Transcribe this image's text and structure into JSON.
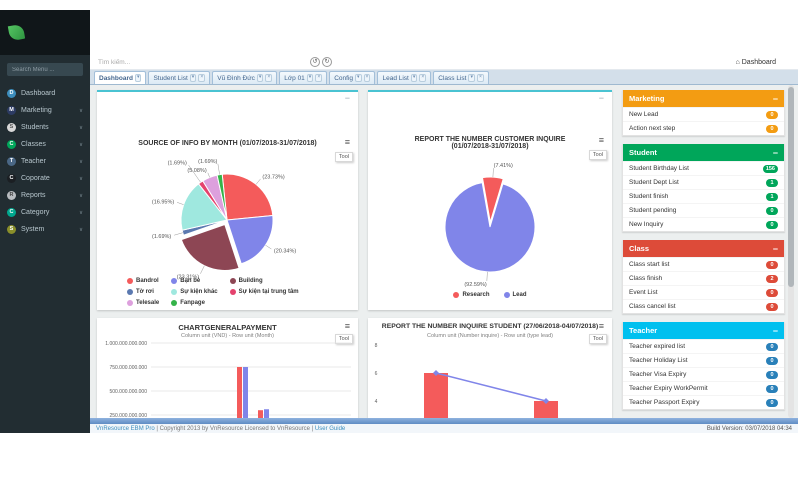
{
  "icons": {
    "minimize": "−",
    "close": "×",
    "caret": "▾",
    "home": "⌂",
    "back": "↺",
    "forward": "↻",
    "hamburger": "≡"
  },
  "labels": {
    "tool": "Tool"
  },
  "sidebar": {
    "search_placeholder": "Search Menu ...",
    "items": [
      {
        "label": "Dashboard",
        "icon": "dashboard-icon",
        "color": "#3c8dbc",
        "text": "#ffffff",
        "chevron": false
      },
      {
        "label": "Marketing",
        "icon": "marketing-icon",
        "color": "#2c3b63",
        "text": "#ffffff",
        "chevron": true
      },
      {
        "label": "Students",
        "icon": "students-icon",
        "color": "#d8d8d8",
        "text": "#555555",
        "chevron": true
      },
      {
        "label": "Classes",
        "icon": "classes-icon",
        "color": "#00a65a",
        "text": "#ffffff",
        "chevron": true
      },
      {
        "label": "Teacher",
        "icon": "teacher-icon",
        "color": "#4a6785",
        "text": "#ffffff",
        "chevron": true
      },
      {
        "label": "Coporate",
        "icon": "corporate-icon",
        "color": "#1b1f23",
        "text": "#ffffff",
        "chevron": true
      },
      {
        "label": "Reports",
        "icon": "reports-icon",
        "color": "#b8bcc0",
        "text": "#444444",
        "chevron": true
      },
      {
        "label": "Category",
        "icon": "category-icon",
        "color": "#00a78e",
        "text": "#ffffff",
        "chevron": true
      },
      {
        "label": "System",
        "icon": "system-icon",
        "color": "#8a8f2a",
        "text": "#ffffff",
        "chevron": true
      }
    ]
  },
  "navbar": {
    "search_placeholder": "Tìm kiếm...",
    "breadcrumb": "Dashboard"
  },
  "tabs": [
    {
      "label": "Dashboard",
      "active": true,
      "closable": false
    },
    {
      "label": "Student List",
      "active": false,
      "closable": true
    },
    {
      "label": "Vũ Đình Đức",
      "active": false,
      "closable": true
    },
    {
      "label": "Lớp 01",
      "active": false,
      "closable": true
    },
    {
      "label": "Config",
      "active": false,
      "closable": true
    },
    {
      "label": "Lead List",
      "active": false,
      "closable": true
    },
    {
      "label": "Class List",
      "active": false,
      "closable": true
    }
  ],
  "chart_data": [
    {
      "type": "pie",
      "title": "SOURCE OF INFO BY MONTH (01/07/2018-31/07/2018)",
      "start_angle": -6,
      "legend_position": "bottom",
      "slices": [
        {
          "label": "Bandrol",
          "value": 23.73,
          "color": "#f45b5b"
        },
        {
          "label": "Bạn bè",
          "value": 20.34,
          "color": "#8085e9"
        },
        {
          "label": "Building",
          "value": 23.31,
          "color": "#8d4654",
          "exploded": true
        },
        {
          "label": "Tờ rơi",
          "value": 1.69,
          "color": "#5b79b0"
        },
        {
          "label": "Sự kiện khác",
          "value": 16.95,
          "color": "#9fe8df"
        },
        {
          "label": "Sự kiện tại trung tâm",
          "value": 1.69,
          "color": "#e4426d"
        },
        {
          "label": "Telesale",
          "value": 5.08,
          "color": "#dda0dd"
        },
        {
          "label": "Fanpage",
          "value": 1.69,
          "color": "#34b349"
        }
      ],
      "legend_order": [
        "Bandrol",
        "Tờ rơi",
        "Telesale",
        "Bạn bè",
        "Sự kiện khác",
        "Fanpage",
        "Building",
        "Sự kiện tại trung tâm"
      ]
    },
    {
      "type": "pie",
      "title": "REPORT THE NUMBER CUSTOMER INQUIRE (01/07/2018-31/07/2018)",
      "start_angle": -10,
      "legend_position": "bottom",
      "slices": [
        {
          "label": "Research",
          "value": 7.41,
          "color": "#f45b5b",
          "exploded": true
        },
        {
          "label": "Lead",
          "value": 92.59,
          "color": "#8085e9"
        }
      ],
      "legend_order": [
        "Research",
        "Lead"
      ]
    },
    {
      "type": "bar",
      "title": "CHARTGENERALPAYMENT",
      "subtitle": "Column unit (VND) - Row unit (Month)",
      "yticks": [
        "1.000.000.000.000",
        "750.000.000.000",
        "500.000.000.000",
        "250.000.000.000"
      ],
      "ylim": [
        0,
        1000000000000
      ],
      "categories": [
        "",
        ""
      ],
      "series": [
        {
          "name": "payment-red",
          "color": "#f45b5b",
          "values": [
            750000000000,
            300000000000
          ]
        },
        {
          "name": "payment-blue",
          "color": "#8085e9",
          "values": [
            750000000000,
            310000000000
          ]
        }
      ],
      "grid": true
    },
    {
      "type": "bar-line",
      "title": "REPORT THE NUMBER INQUIRE STUDENT (27/06/2018-04/07/2018)",
      "subtitle": "Column unit (Number inquire) - Row unit (type lead)",
      "yticks": [
        "8",
        "6",
        "4"
      ],
      "categories": [
        "",
        ""
      ],
      "bars": {
        "color": "#f45b5b",
        "values": [
          6,
          4
        ]
      },
      "line": {
        "color": "#8085e9",
        "values": [
          6,
          4
        ]
      },
      "grid": false
    }
  ],
  "right_panels": [
    {
      "title": "Marketing",
      "color": "#f39c12",
      "badge_color": "#f39c12",
      "items": [
        {
          "label": "New Lead",
          "badge": "0"
        },
        {
          "label": "Action next step",
          "badge": "0"
        }
      ]
    },
    {
      "title": "Student",
      "color": "#00a65a",
      "badge_color": "#00a65a",
      "items": [
        {
          "label": "Student Birthday List",
          "badge": "156"
        },
        {
          "label": "Student Dept List",
          "badge": "1"
        },
        {
          "label": "Student finish",
          "badge": "1"
        },
        {
          "label": "Student pending",
          "badge": "0"
        },
        {
          "label": "New Inquiry",
          "badge": "0"
        }
      ]
    },
    {
      "title": "Class",
      "color": "#dd4b39",
      "badge_color": "#dd4b39",
      "items": [
        {
          "label": "Class start list",
          "badge": "0"
        },
        {
          "label": "Class finish",
          "badge": "2"
        },
        {
          "label": "Event List",
          "badge": "0"
        },
        {
          "label": "Class cancel list",
          "badge": "0"
        }
      ]
    },
    {
      "title": "Teacher",
      "color": "#00c0ef",
      "badge_color": "#2980b9",
      "items": [
        {
          "label": "Teacher expired list",
          "badge": "0"
        },
        {
          "label": "Teacher Holiday List",
          "badge": "0"
        },
        {
          "label": "Teacher Visa Expiry",
          "badge": "0"
        },
        {
          "label": "Teacher Expiry WorkPermit",
          "badge": "0"
        },
        {
          "label": "Teacher Passport Expiry",
          "badge": "0"
        }
      ]
    }
  ],
  "footer": {
    "product": "VnResource EBM Pro",
    "copyright": "| Copyright 2013 by VnResource Licensed to VnResource |",
    "user_guide": "User Guide",
    "build": "Build Version: 03/07/2018 04:34"
  }
}
